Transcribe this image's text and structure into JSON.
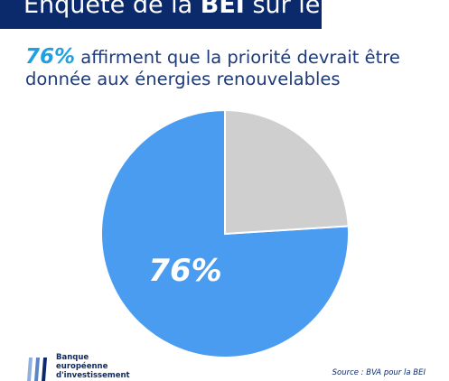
{
  "header": {
    "title_before": "Enquête de la ",
    "title_bold": "BEI",
    "title_after": " sur le climat"
  },
  "subtitle": {
    "highlight": "76%",
    "text": " affirment que la priorité devrait être donnée aux énergies renouvelables"
  },
  "footer": {
    "logo_lines": [
      "Banque",
      "européenne",
      "d'investissement"
    ],
    "source": "Source : BVA pour la BEI"
  },
  "colors": {
    "header_bg": "#0b2a6b",
    "highlight": "#1fa0e3",
    "main_slice": "#4a9cf0",
    "other_slice": "#cfcfcf"
  },
  "chart_data": {
    "type": "pie",
    "slices": [
      {
        "label": "76%",
        "value": 76,
        "color": "#4a9cf0"
      },
      {
        "label": "",
        "value": 24,
        "color": "#cfcfcf"
      }
    ]
  }
}
